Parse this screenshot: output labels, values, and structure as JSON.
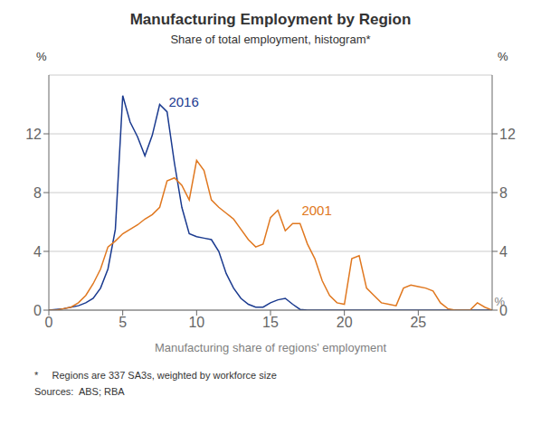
{
  "chart_data": {
    "type": "line",
    "title": "Manufacturing Employment by Region",
    "subtitle": "Share of total employment, histogram*",
    "xlabel": "Manufacturing share of regions' employment",
    "x_unit": "%",
    "ylabel": "%",
    "y2label": "%",
    "xlim": [
      0,
      30
    ],
    "xticks": [
      0,
      5,
      10,
      15,
      20,
      25
    ],
    "ylim": [
      0,
      16
    ],
    "yticks": [
      0,
      4,
      8,
      12
    ],
    "y2lim": [
      0,
      16
    ],
    "y2ticks": [
      0,
      4,
      8,
      12
    ],
    "grid": true,
    "notes": [
      "*     Regions are 337 SA3s, weighted by workforce size",
      "Sources:  ABS; RBA"
    ],
    "annotations": [
      {
        "text": "2016",
        "x": 7.8,
        "y": 14.2,
        "color": "#1a3a8f"
      },
      {
        "text": "2001",
        "x": 16.8,
        "y": 6.8,
        "color": "#e07820"
      }
    ],
    "series": [
      {
        "color": "#1a3a8f",
        "x": [
          0,
          0.5,
          1,
          1.5,
          2,
          2.5,
          3,
          3.5,
          4,
          4.5,
          5,
          5.5,
          6,
          6.5,
          7,
          7.5,
          8,
          8.5,
          9,
          9.5,
          10,
          10.5,
          11,
          11.5,
          12,
          12.5,
          13,
          13.5,
          14,
          14.5,
          15,
          15.5,
          16,
          16.5,
          17,
          17.5,
          18,
          19,
          20,
          21,
          22,
          23,
          24,
          25,
          26,
          27,
          28,
          29,
          30
        ],
        "values": [
          0,
          0.05,
          0.1,
          0.2,
          0.3,
          0.5,
          0.8,
          1.5,
          2.8,
          5.5,
          14.6,
          12.8,
          11.8,
          10.5,
          11.9,
          14.0,
          13.5,
          10.0,
          7.0,
          5.2,
          5.0,
          4.9,
          4.8,
          4.0,
          2.5,
          1.5,
          0.8,
          0.4,
          0.2,
          0.2,
          0.5,
          0.7,
          0.8,
          0.4,
          0.05,
          0.0,
          0.0,
          0.0,
          0.0,
          0.0,
          0.0,
          0.0,
          0.0,
          0.0,
          0.0,
          0.0,
          0.0,
          0.0,
          0.0
        ]
      },
      {
        "color": "#e07820",
        "x": [
          0,
          0.5,
          1,
          1.5,
          2,
          2.5,
          3,
          3.5,
          4,
          4.5,
          5,
          5.5,
          6,
          6.5,
          7,
          7.5,
          8,
          8.5,
          9,
          9.5,
          10,
          10.5,
          11,
          11.5,
          12,
          12.5,
          13,
          13.5,
          14,
          14.5,
          15,
          15.5,
          16,
          16.5,
          17,
          17.5,
          18,
          18.5,
          19,
          19.5,
          20,
          20.5,
          21,
          21.5,
          22,
          22.5,
          23,
          23.5,
          24,
          24.5,
          25,
          25.5,
          26,
          26.5,
          27,
          27.5,
          28,
          28.5,
          29,
          29.5,
          30
        ],
        "values": [
          0,
          0.0,
          0.1,
          0.2,
          0.5,
          1.0,
          1.8,
          2.8,
          4.3,
          4.7,
          5.2,
          5.5,
          5.8,
          6.2,
          6.5,
          7.0,
          8.8,
          9.0,
          8.5,
          7.5,
          10.2,
          9.5,
          7.5,
          7.0,
          6.6,
          6.2,
          5.5,
          4.8,
          4.3,
          4.5,
          6.3,
          6.8,
          5.4,
          5.9,
          5.9,
          4.5,
          3.5,
          2.0,
          1.0,
          0.5,
          0.4,
          3.5,
          3.7,
          1.5,
          1.0,
          0.5,
          0.4,
          0.3,
          1.5,
          1.7,
          1.6,
          1.5,
          1.3,
          0.5,
          0.1,
          0.0,
          0.0,
          0.0,
          0.5,
          0.2,
          0.0
        ]
      }
    ]
  }
}
